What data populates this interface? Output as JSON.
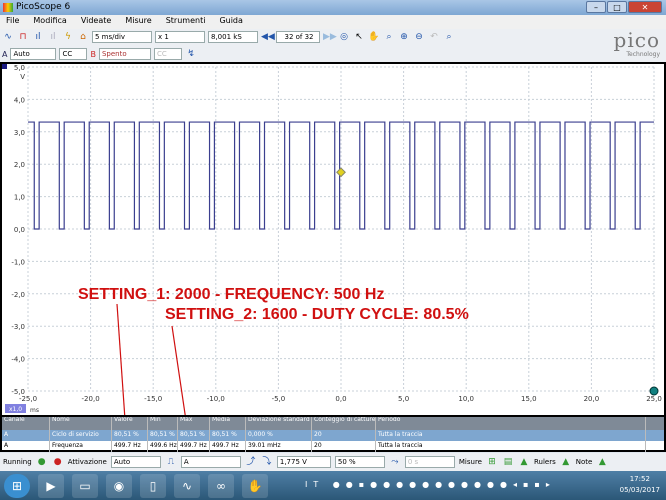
{
  "window": {
    "title": "PicoScope 6"
  },
  "menu": [
    "File",
    "Modifica",
    "Videate",
    "Misure",
    "Strumenti",
    "Guida"
  ],
  "toolbar": {
    "timebase": "5 ms/div",
    "zoom": "x 1",
    "samples": "8,001 kS",
    "capture": "32 of 32"
  },
  "channels": {
    "a_label": "A",
    "a_range": "Auto",
    "a_coupling": "CC",
    "b_label": "B",
    "b_range": "Spento",
    "b_coupling": "CC"
  },
  "brand": {
    "logo": "pico",
    "sub": "Technology"
  },
  "plot": {
    "y_unit": "V",
    "x_unit": "ms",
    "zoom_badge": "x1,0",
    "y_ticks": [
      "5,0",
      "4,0",
      "3,0",
      "2,0",
      "1,0",
      "0,0",
      "-1,0",
      "-2,0",
      "-3,0",
      "-4,0",
      "-5,0"
    ],
    "x_ticks": [
      "-25,0",
      "-20,0",
      "-15,0",
      "-10,0",
      "-5,0",
      "0,0",
      "5,0",
      "10,0",
      "15,0",
      "20,0",
      "25,0"
    ],
    "signal": {
      "frequency_hz": 500,
      "duty_cycle_pct": 80.5,
      "high_v": 3.3,
      "low_v": 0,
      "first_fall_ms": -24.5,
      "color": "#3b3f8f"
    },
    "trigger_marker_color": "#e0d020"
  },
  "annotations": {
    "line1": "SETTING_1: 2000 - FREQUENCY: 500 Hz",
    "line2": "SETTING_2: 1600 - DUTY CYCLE: 80.5%",
    "color": "#d01010"
  },
  "measurements": {
    "headers": [
      "Canale",
      "Nome",
      "Valore",
      "Min",
      "Max",
      "Media",
      "Deviazione standard",
      "Conteggio di catture",
      "Periodo"
    ],
    "rows": [
      [
        "A",
        "Ciclo di servizio",
        "80,51 %",
        "80,51 %",
        "80,51 %",
        "80,51 %",
        "0,000 %",
        "20",
        "Tutta la traccia"
      ],
      [
        "A",
        "Frequenza",
        "499.7 Hz",
        "499.6 Hz",
        "499.7 Hz",
        "499.7 Hz",
        "39.01 mHz",
        "20",
        "Tutta la traccia"
      ]
    ]
  },
  "bottom": {
    "status": "Running",
    "trigger_label": "Attivazione",
    "trigger_mode": "Auto",
    "trigger_source": "A",
    "threshold": "1,775 V",
    "pretrigger": "50 %",
    "delay": "0 s",
    "measures": "Misure",
    "rulers": "Rulers",
    "notes": "Note"
  },
  "taskbar": {
    "lang": "IT",
    "time": "17:52",
    "date": "05/03/2017"
  }
}
